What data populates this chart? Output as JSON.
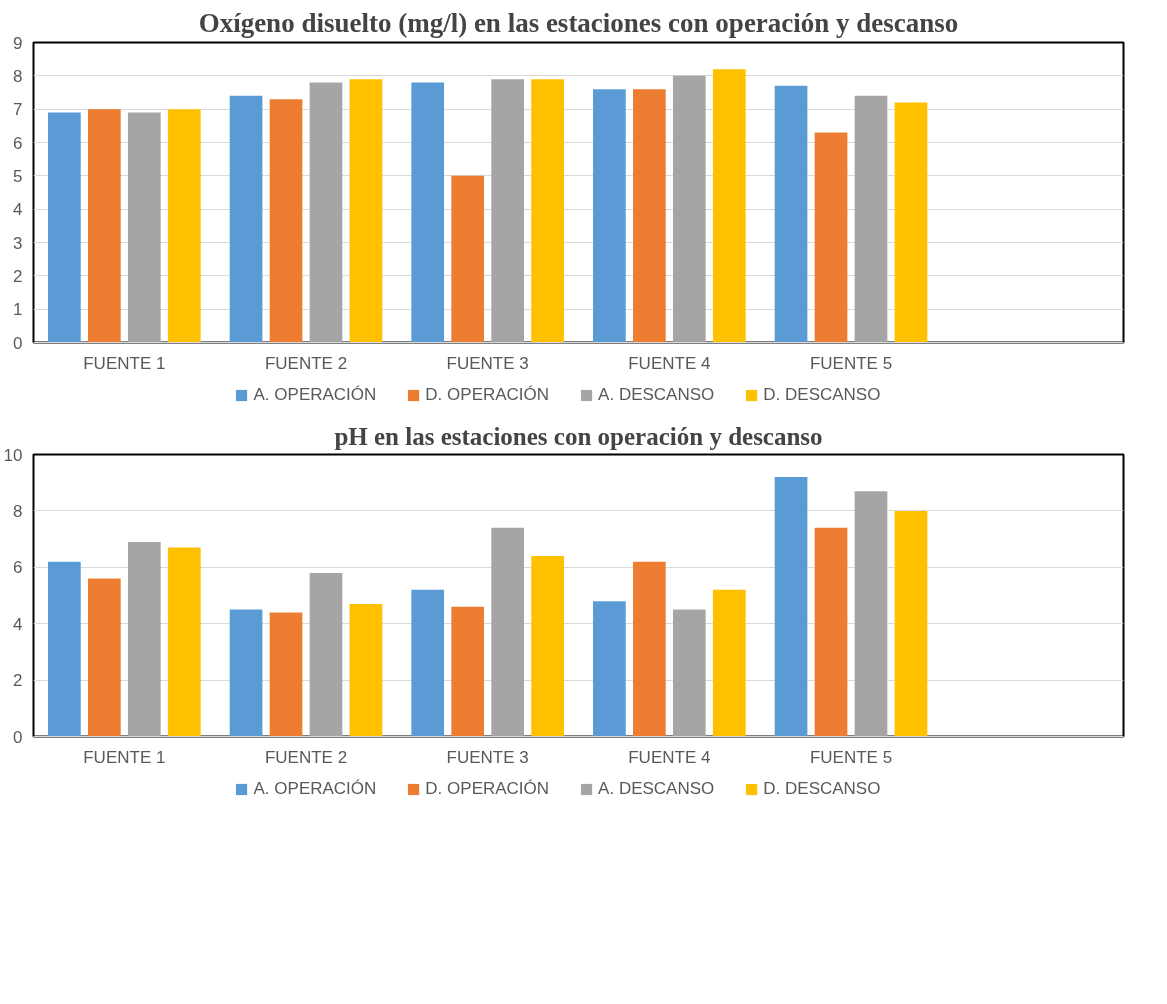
{
  "chart_data": [
    {
      "type": "bar",
      "title": "Oxígeno disuelto (mg/l) en las estaciones con operación y descanso",
      "categories": [
        "FUENTE 1",
        "FUENTE 2",
        "FUENTE 3",
        "FUENTE 4",
        "FUENTE 5",
        null
      ],
      "series": [
        {
          "name": "A. OPERACIÓN",
          "color": "#5b9bd5",
          "values": [
            6.9,
            7.4,
            7.8,
            7.6,
            7.7,
            null
          ]
        },
        {
          "name": "D. OPERACIÓN",
          "color": "#ed7d31",
          "values": [
            7.0,
            7.3,
            5.0,
            7.6,
            6.3,
            null
          ]
        },
        {
          "name": "A. DESCANSO",
          "color": "#a5a5a5",
          "values": [
            6.9,
            7.8,
            7.9,
            8.0,
            7.4,
            null
          ]
        },
        {
          "name": "D. DESCANSO",
          "color": "#ffc000",
          "values": [
            7.0,
            7.9,
            7.9,
            8.2,
            7.2,
            null
          ]
        }
      ],
      "ylim": [
        0,
        9
      ],
      "yticks": [
        0,
        1,
        2,
        3,
        4,
        5,
        6,
        7,
        8,
        9
      ],
      "grid": "y",
      "legend": "bottom"
    },
    {
      "type": "bar",
      "title": "pH en las estaciones con operación y descanso",
      "categories": [
        "FUENTE 1",
        "FUENTE 2",
        "FUENTE 3",
        "FUENTE 4",
        "FUENTE 5",
        null
      ],
      "series": [
        {
          "name": "A. OPERACIÓN",
          "color": "#5b9bd5",
          "values": [
            6.2,
            4.5,
            5.2,
            4.8,
            9.2,
            null
          ]
        },
        {
          "name": "D. OPERACIÓN",
          "color": "#ed7d31",
          "values": [
            5.6,
            4.4,
            4.6,
            6.2,
            7.4,
            null
          ]
        },
        {
          "name": "A. DESCANSO",
          "color": "#a5a5a5",
          "values": [
            6.9,
            5.8,
            7.4,
            4.5,
            8.7,
            null
          ]
        },
        {
          "name": "D. DESCANSO",
          "color": "#ffc000",
          "values": [
            6.7,
            4.7,
            6.4,
            5.2,
            8.0,
            null
          ]
        }
      ],
      "ylim": [
        0,
        10
      ],
      "yticks": [
        0,
        2,
        4,
        6,
        8,
        10
      ],
      "grid": "y",
      "legend": "bottom"
    }
  ]
}
